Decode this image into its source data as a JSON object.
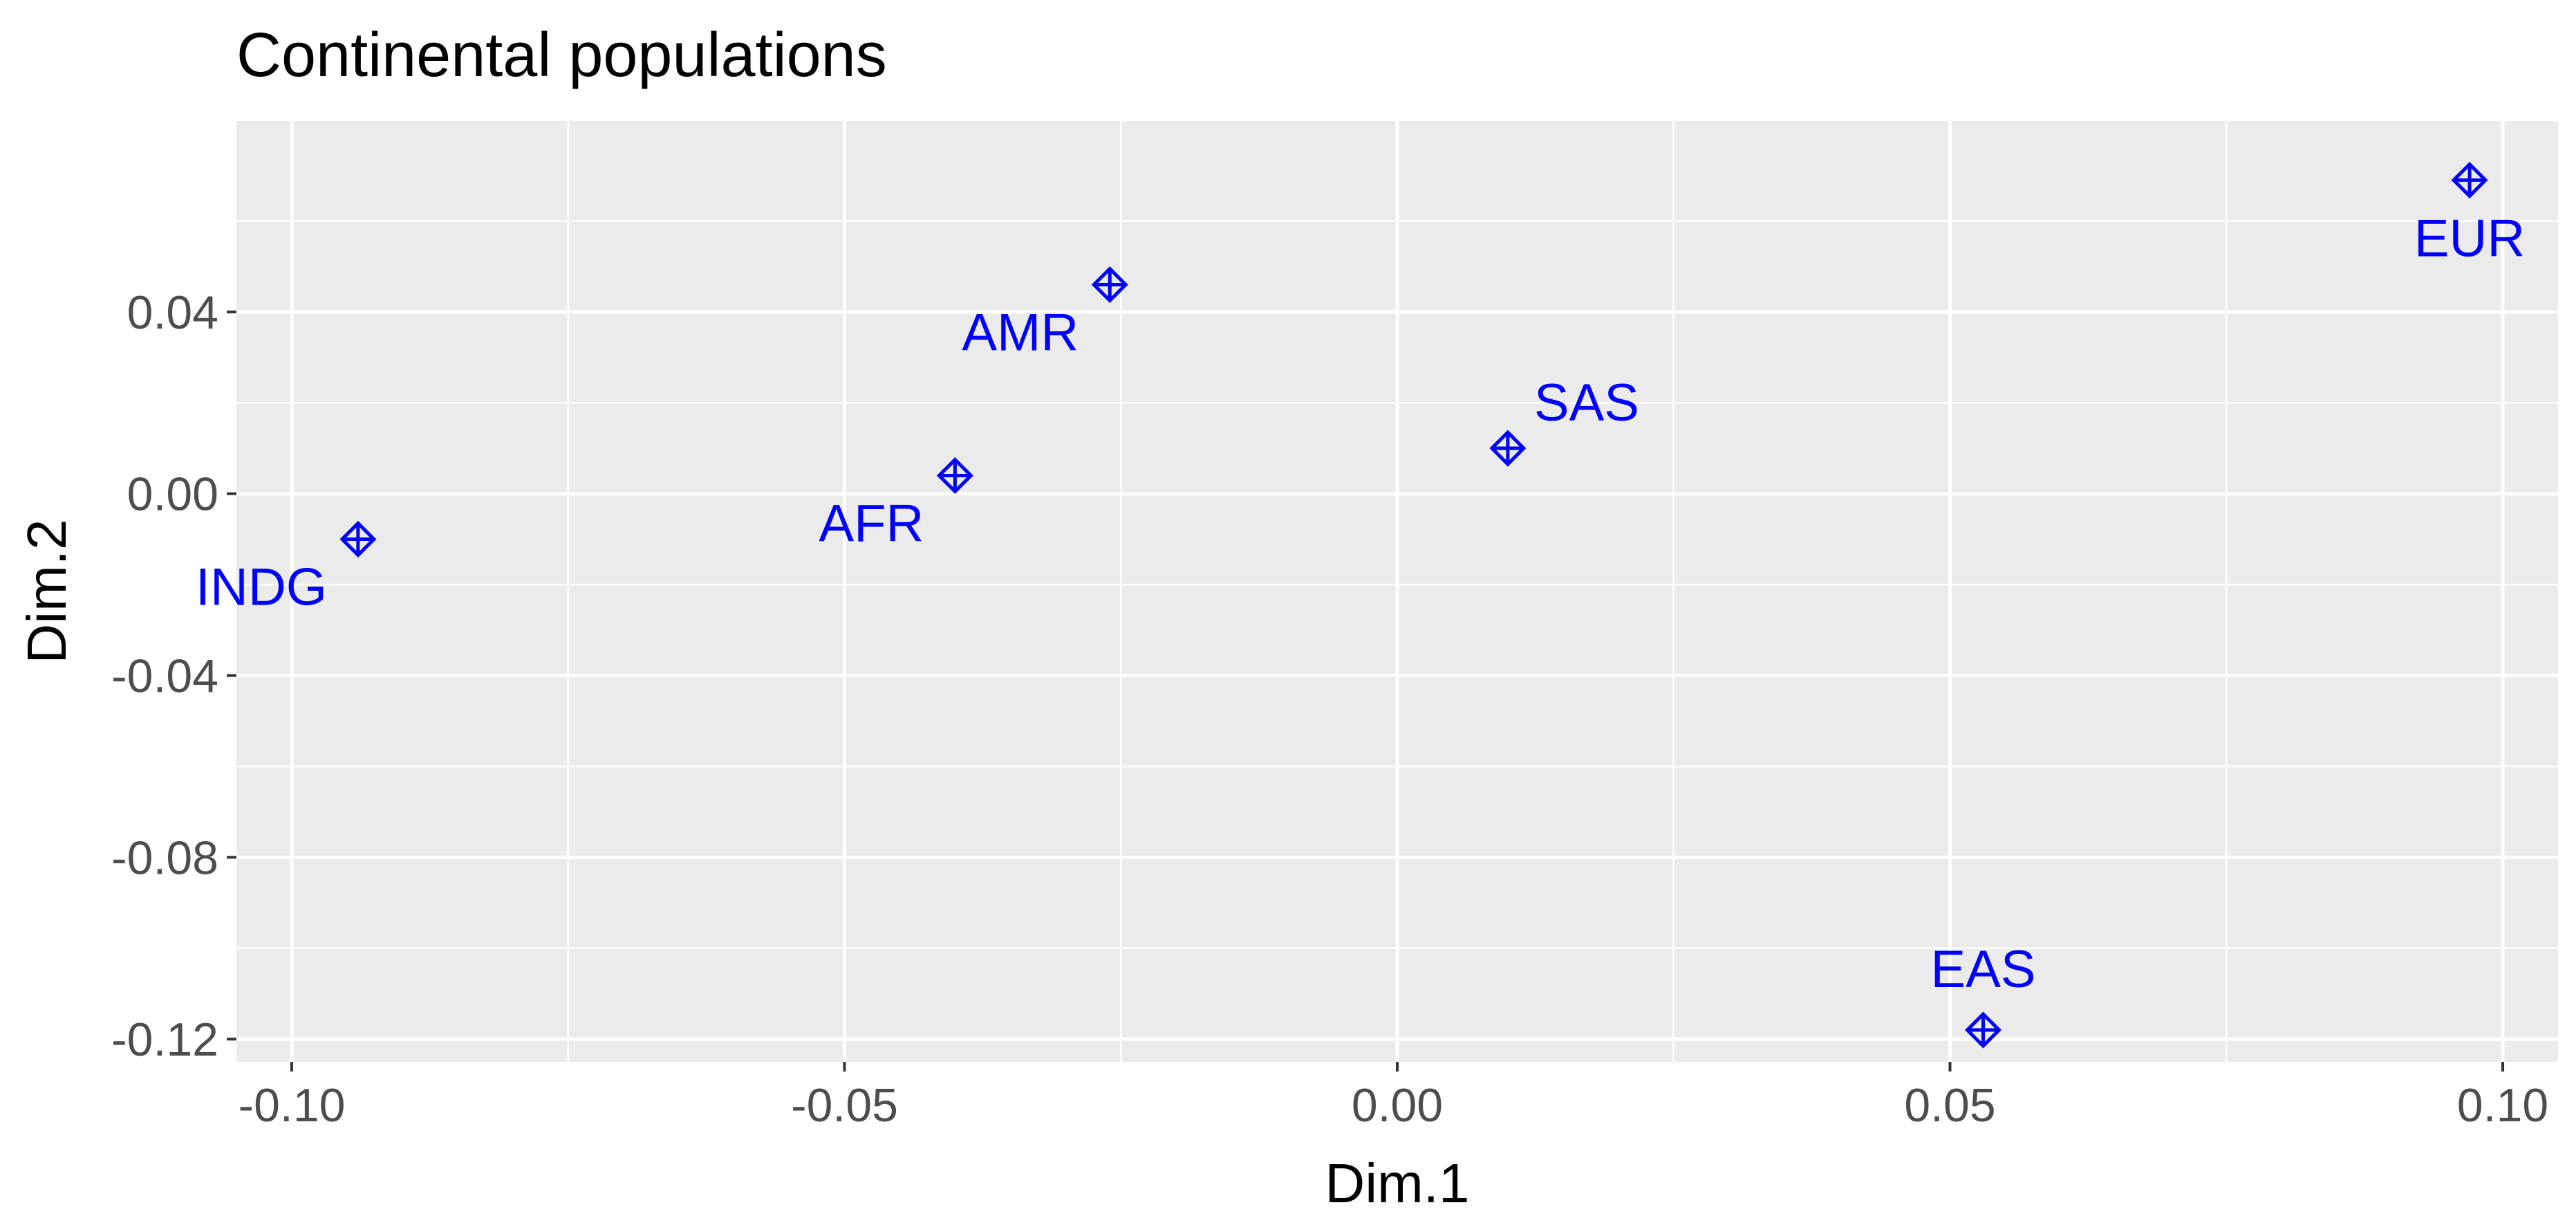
{
  "chart_data": {
    "type": "scatter",
    "title": "Continental populations",
    "xlabel": "Dim.1",
    "ylabel": "Dim.2",
    "xlim": [
      -0.105,
      0.105
    ],
    "ylim": [
      -0.125,
      0.082
    ],
    "xticks": [
      -0.1,
      -0.05,
      0.0,
      0.05,
      0.1
    ],
    "xtick_labels": [
      "-0.10",
      "-0.05",
      "0.00",
      "0.05",
      "0.10"
    ],
    "yticks": [
      -0.12,
      -0.08,
      -0.04,
      0.0,
      0.04
    ],
    "ytick_labels": [
      "-0.12",
      "-0.08",
      "-0.04",
      "0.00",
      "0.04"
    ],
    "grid": true,
    "point_color": "#0000ff",
    "panel_background": "#ebebeb",
    "grid_color": "#ffffff",
    "points": [
      {
        "label": "INDG",
        "x": -0.094,
        "y": -0.01,
        "label_position": "below-left"
      },
      {
        "label": "AFR",
        "x": -0.04,
        "y": 0.004,
        "label_position": "below-left"
      },
      {
        "label": "AMR",
        "x": -0.026,
        "y": 0.046,
        "label_position": "below-left"
      },
      {
        "label": "SAS",
        "x": 0.01,
        "y": 0.01,
        "label_position": "above-right"
      },
      {
        "label": "EAS",
        "x": 0.053,
        "y": -0.118,
        "label_position": "above"
      },
      {
        "label": "EUR",
        "x": 0.097,
        "y": 0.069,
        "label_position": "below"
      }
    ]
  }
}
